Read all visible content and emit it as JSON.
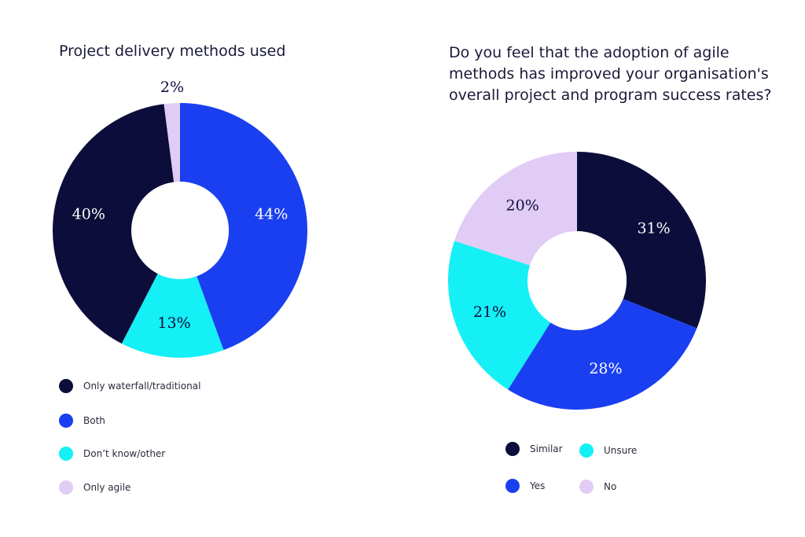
{
  "chart_data": [
    {
      "type": "pie",
      "donut": true,
      "title": "Project delivery methods used",
      "categories": [
        "Both",
        "Don't know/other",
        "Only waterfall/traditional",
        "Only agile"
      ],
      "values": [
        44,
        13,
        40,
        2
      ],
      "labels": [
        "44%",
        "13%",
        "40%",
        "2%"
      ],
      "colors": [
        "#1a3ff0",
        "#14f0f5",
        "#0c0d3a",
        "#e0ccf5"
      ],
      "legend": {
        "placement": "bottom-left",
        "entries": [
          {
            "label": "Only waterfall/traditional",
            "color": "#0c0d3a"
          },
          {
            "label": "Both",
            "color": "#1a3ff0"
          },
          {
            "label": "Don’t know/other",
            "color": "#14f0f5"
          },
          {
            "label": "Only agile",
            "color": "#e0ccf5"
          }
        ]
      }
    },
    {
      "type": "pie",
      "donut": true,
      "title": "Do you feel that the adoption of agile methods has improved your organisation's overall project and program success rates?",
      "categories": [
        "Similar",
        "Yes",
        "Unsure",
        "No"
      ],
      "values": [
        31,
        28,
        21,
        20
      ],
      "labels": [
        "31%",
        "28%",
        "21%",
        "20%"
      ],
      "colors": [
        "#0c0d3a",
        "#1a3ff0",
        "#14f0f5",
        "#e0ccf5"
      ],
      "legend": {
        "placement": "bottom",
        "entries": [
          {
            "label": "Similar",
            "color": "#0c0d3a"
          },
          {
            "label": "Unsure",
            "color": "#14f0f5"
          },
          {
            "label": "Yes",
            "color": "#1a3ff0"
          },
          {
            "label": "No",
            "color": "#e0ccf5"
          }
        ]
      }
    }
  ]
}
